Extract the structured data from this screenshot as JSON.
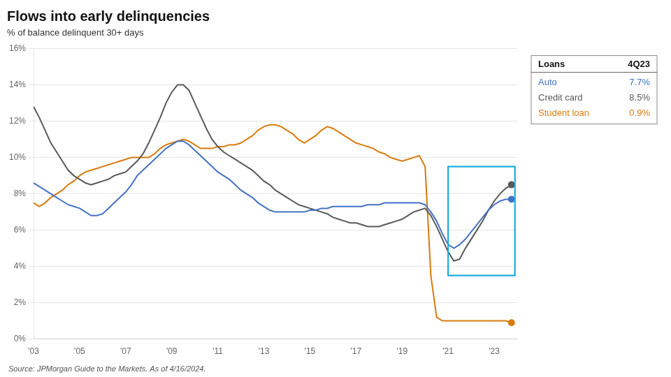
{
  "chart_data": {
    "type": "line",
    "title": "Flows into early delinquencies",
    "subtitle": "% of balance delinquent 30+ days",
    "source": "Source: JPMorgan Guide to the Markets. As of 4/16/2024.",
    "xlim": [
      2003,
      2024.0
    ],
    "xticks": [
      {
        "value": 2003,
        "label": "'03"
      },
      {
        "value": 2005,
        "label": "'05"
      },
      {
        "value": 2007,
        "label": "'07"
      },
      {
        "value": 2009,
        "label": "'09"
      },
      {
        "value": 2011,
        "label": "'11"
      },
      {
        "value": 2013,
        "label": "'13"
      },
      {
        "value": 2015,
        "label": "'15"
      },
      {
        "value": 2017,
        "label": "'17"
      },
      {
        "value": 2019,
        "label": "'19"
      },
      {
        "value": 2021,
        "label": "'21"
      },
      {
        "value": 2023,
        "label": "'23"
      }
    ],
    "ylim": [
      0,
      16
    ],
    "yticks": [
      {
        "value": 0,
        "label": "0%"
      },
      {
        "value": 2,
        "label": "2%"
      },
      {
        "value": 4,
        "label": "4%"
      },
      {
        "value": 6,
        "label": "6%"
      },
      {
        "value": 8,
        "label": "8%"
      },
      {
        "value": 10,
        "label": "10%"
      },
      {
        "value": 12,
        "label": "12%"
      },
      {
        "value": 14,
        "label": "14%"
      },
      {
        "value": 16,
        "label": "16%"
      }
    ],
    "grid": "y",
    "marker": "end",
    "legend": "right",
    "legend_title": "Loans",
    "legend_value_title": "4Q23",
    "x": [
      2003.0,
      2003.25,
      2003.5,
      2003.75,
      2004.0,
      2004.25,
      2004.5,
      2004.75,
      2005.0,
      2005.25,
      2005.5,
      2005.75,
      2006.0,
      2006.25,
      2006.5,
      2006.75,
      2007.0,
      2007.25,
      2007.5,
      2007.75,
      2008.0,
      2008.25,
      2008.5,
      2008.75,
      2009.0,
      2009.25,
      2009.5,
      2009.75,
      2010.0,
      2010.25,
      2010.5,
      2010.75,
      2011.0,
      2011.25,
      2011.5,
      2011.75,
      2012.0,
      2012.25,
      2012.5,
      2012.75,
      2013.0,
      2013.25,
      2013.5,
      2013.75,
      2014.0,
      2014.25,
      2014.5,
      2014.75,
      2015.0,
      2015.25,
      2015.5,
      2015.75,
      2016.0,
      2016.25,
      2016.5,
      2016.75,
      2017.0,
      2017.25,
      2017.5,
      2017.75,
      2018.0,
      2018.25,
      2018.5,
      2018.75,
      2019.0,
      2019.25,
      2019.5,
      2019.75,
      2020.0,
      2020.25,
      2020.5,
      2020.75,
      2021.0,
      2021.25,
      2021.5,
      2021.75,
      2022.0,
      2022.25,
      2022.5,
      2022.75,
      2023.0,
      2023.25,
      2023.5,
      2023.75
    ],
    "series": [
      {
        "name": "Auto",
        "color": "#4472C4",
        "legend_value": "7.7%",
        "values": [
          8.6,
          8.4,
          8.2,
          8.0,
          7.8,
          7.6,
          7.4,
          7.3,
          7.2,
          7.0,
          6.8,
          6.8,
          6.9,
          7.2,
          7.5,
          7.8,
          8.1,
          8.5,
          9.0,
          9.3,
          9.6,
          9.9,
          10.2,
          10.5,
          10.7,
          10.9,
          10.9,
          10.7,
          10.4,
          10.1,
          9.8,
          9.5,
          9.2,
          9.0,
          8.8,
          8.5,
          8.2,
          8.0,
          7.8,
          7.5,
          7.3,
          7.1,
          7.0,
          7.0,
          7.0,
          7.0,
          7.0,
          7.0,
          7.1,
          7.1,
          7.2,
          7.2,
          7.3,
          7.3,
          7.3,
          7.3,
          7.3,
          7.3,
          7.4,
          7.4,
          7.4,
          7.5,
          7.5,
          7.5,
          7.5,
          7.5,
          7.5,
          7.5,
          7.4,
          7.0,
          6.5,
          5.8,
          5.2,
          5.0,
          5.2,
          5.5,
          5.9,
          6.3,
          6.7,
          7.1,
          7.4,
          7.6,
          7.7,
          7.7
        ]
      },
      {
        "name": "Credit card",
        "color": "#595959",
        "legend_value": "8.5%",
        "values": [
          12.8,
          12.2,
          11.5,
          10.8,
          10.3,
          9.8,
          9.3,
          9.0,
          8.8,
          8.6,
          8.5,
          8.6,
          8.7,
          8.8,
          9.0,
          9.1,
          9.2,
          9.5,
          9.8,
          10.2,
          10.8,
          11.5,
          12.2,
          13.0,
          13.6,
          14.0,
          14.0,
          13.7,
          13.0,
          12.3,
          11.6,
          11.0,
          10.6,
          10.3,
          10.1,
          9.9,
          9.7,
          9.5,
          9.3,
          9.0,
          8.7,
          8.5,
          8.2,
          8.0,
          7.8,
          7.6,
          7.4,
          7.3,
          7.2,
          7.1,
          7.0,
          6.9,
          6.7,
          6.6,
          6.5,
          6.4,
          6.4,
          6.3,
          6.2,
          6.2,
          6.2,
          6.3,
          6.4,
          6.5,
          6.6,
          6.8,
          7.0,
          7.1,
          7.2,
          6.8,
          6.2,
          5.5,
          4.8,
          4.3,
          4.4,
          5.0,
          5.5,
          6.0,
          6.5,
          7.1,
          7.6,
          8.0,
          8.3,
          8.5
        ]
      },
      {
        "name": "Student loan",
        "color": "#D97B0D",
        "legend_value": "0.9%",
        "values": [
          7.5,
          7.3,
          7.5,
          7.8,
          8.0,
          8.2,
          8.5,
          8.7,
          9.0,
          9.2,
          9.3,
          9.4,
          9.5,
          9.6,
          9.7,
          9.8,
          9.9,
          10.0,
          10.0,
          10.0,
          10.0,
          10.2,
          10.5,
          10.7,
          10.8,
          10.9,
          11.0,
          10.9,
          10.7,
          10.5,
          10.5,
          10.5,
          10.6,
          10.6,
          10.7,
          10.7,
          10.8,
          11.0,
          11.2,
          11.5,
          11.7,
          11.8,
          11.8,
          11.7,
          11.5,
          11.3,
          11.0,
          10.8,
          11.0,
          11.2,
          11.5,
          11.7,
          11.6,
          11.4,
          11.2,
          11.0,
          10.8,
          10.7,
          10.6,
          10.5,
          10.3,
          10.2,
          10.0,
          9.9,
          9.8,
          9.9,
          10.0,
          10.1,
          9.5,
          3.5,
          1.2,
          1.0,
          1.0,
          1.0,
          1.0,
          1.0,
          1.0,
          1.0,
          1.0,
          1.0,
          1.0,
          1.0,
          1.0,
          0.9
        ]
      }
    ],
    "highlight": {
      "x": [
        2021.0,
        2023.9
      ],
      "y": [
        3.5,
        9.5
      ],
      "color": "#1AACDB"
    }
  }
}
